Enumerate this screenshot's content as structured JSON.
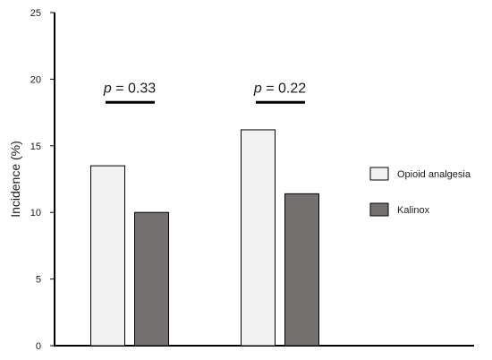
{
  "chart_data": {
    "type": "bar",
    "title": "",
    "xlabel": "",
    "ylabel": "Incidence (%)",
    "ylim": [
      0,
      25
    ],
    "yticks": [
      0,
      5,
      10,
      15,
      20,
      25
    ],
    "grid": false,
    "legend_position": "right",
    "categories": [
      "",
      ""
    ],
    "series": [
      {
        "name": "Opioid analgesia",
        "values": [
          13.5,
          16.2
        ],
        "color": "#f2f2f2"
      },
      {
        "name": "Kalinox",
        "values": [
          10.0,
          11.4
        ],
        "color": "#757070"
      }
    ],
    "annotations": [
      {
        "group": 0,
        "italic": "p",
        "rest": " = 0.33",
        "y": 19.0
      },
      {
        "group": 1,
        "italic": "p",
        "rest": " = 0.22",
        "y": 19.0
      }
    ]
  }
}
